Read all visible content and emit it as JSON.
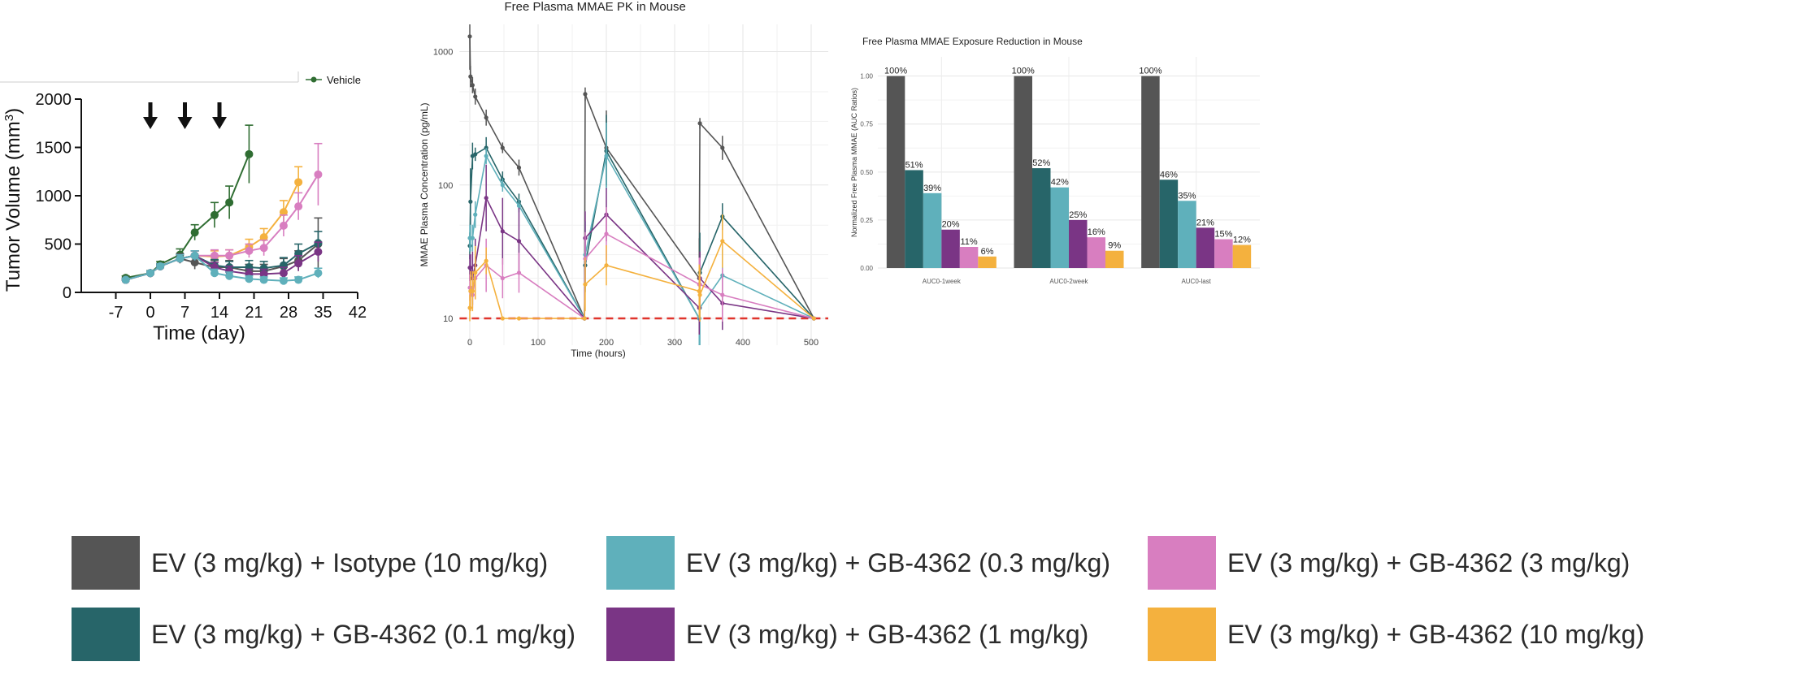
{
  "colors": {
    "isotype": "#555555",
    "gb01": "#276569",
    "gb03": "#5fb0bb",
    "gb1": "#7a3585",
    "gb3": "#d87ec0",
    "gb10": "#f4b13e",
    "vehicle": "#2f6d32",
    "lloq": "#e0342c"
  },
  "legend": {
    "items": [
      {
        "key": "isotype",
        "label": "EV (3 mg/kg) + Isotype (10 mg/kg)"
      },
      {
        "key": "gb03",
        "label": "EV (3 mg/kg) + GB-4362 (0.3 mg/kg)"
      },
      {
        "key": "gb3",
        "label": "EV (3 mg/kg) + GB-4362 (3 mg/kg)"
      },
      {
        "key": "gb01",
        "label": "EV (3 mg/kg) + GB-4362 (0.1 mg/kg)"
      },
      {
        "key": "gb1",
        "label": "EV (3 mg/kg) + GB-4362 (1 mg/kg)"
      },
      {
        "key": "gb10",
        "label": "EV (3 mg/kg) + GB-4362 (10 mg/kg)"
      }
    ]
  },
  "chart_data": [
    {
      "type": "line",
      "title": "",
      "xlabel": "Time (day)",
      "ylabel": "Tumor Volume (mm",
      "ylabel_sup": "3",
      "ylabel_close": ")",
      "xlim": [
        -14,
        42
      ],
      "ylim": [
        0,
        2000
      ],
      "xticks": [
        -7,
        0,
        7,
        14,
        21,
        28,
        35,
        42
      ],
      "xtick_labels": [
        "-7",
        "0",
        "7",
        "14",
        "21",
        "28",
        "35",
        "42"
      ],
      "yticks": [
        0,
        500,
        1000,
        1500,
        2000
      ],
      "ytick_labels": [
        "0",
        "500",
        "1000",
        "1500",
        "2000"
      ],
      "dosing_days": [
        0,
        7,
        14
      ],
      "inset_legend": "Vehicle",
      "series": [
        {
          "name": "Vehicle",
          "key": "vehicle",
          "x": [
            -5,
            0,
            2,
            6,
            9,
            13,
            16,
            20
          ],
          "y": [
            150,
            200,
            290,
            390,
            620,
            800,
            930,
            1430
          ],
          "err": [
            20,
            25,
            30,
            60,
            80,
            130,
            170,
            300
          ]
        },
        {
          "name": "EV (3 mg/kg) + GB-4362 (10 mg/kg)",
          "key": "gb10",
          "x": [
            -5,
            0,
            2,
            6,
            9,
            13,
            16,
            20,
            23,
            27,
            30
          ],
          "y": [
            130,
            200,
            270,
            350,
            380,
            370,
            380,
            470,
            570,
            830,
            1140
          ],
          "err": [
            15,
            20,
            25,
            40,
            50,
            60,
            60,
            80,
            90,
            120,
            160
          ]
        },
        {
          "name": "EV (3 mg/kg) + GB-4362 (3 mg/kg)",
          "key": "gb3",
          "x": [
            -5,
            0,
            2,
            6,
            9,
            13,
            16,
            20,
            23,
            27,
            30,
            34
          ],
          "y": [
            130,
            200,
            270,
            350,
            380,
            380,
            380,
            430,
            460,
            690,
            890,
            1220
          ],
          "err": [
            15,
            20,
            25,
            40,
            50,
            60,
            60,
            70,
            80,
            110,
            140,
            320
          ]
        },
        {
          "name": "EV (3 mg/kg) + Isotype (10 mg/kg)",
          "key": "isotype",
          "x": [
            -5,
            0,
            2,
            6,
            9,
            13,
            16,
            20,
            23,
            27,
            30,
            34
          ],
          "y": [
            130,
            200,
            270,
            350,
            310,
            260,
            260,
            220,
            220,
            270,
            330,
            500
          ],
          "err": [
            15,
            20,
            25,
            50,
            70,
            70,
            70,
            70,
            70,
            80,
            100,
            270
          ]
        },
        {
          "name": "EV (3 mg/kg) + GB-4362 (0.1 mg/kg)",
          "key": "gb01",
          "x": [
            -5,
            0,
            2,
            6,
            9,
            13,
            16,
            20,
            23,
            27,
            30,
            34
          ],
          "y": [
            130,
            200,
            270,
            350,
            380,
            280,
            260,
            260,
            250,
            280,
            400,
            510
          ],
          "err": [
            15,
            20,
            25,
            40,
            50,
            60,
            60,
            70,
            70,
            80,
            100,
            120
          ]
        },
        {
          "name": "EV (3 mg/kg) + GB-4362 (1 mg/kg)",
          "key": "gb1",
          "x": [
            -5,
            0,
            2,
            6,
            9,
            13,
            16,
            20,
            23,
            27,
            30,
            34
          ],
          "y": [
            130,
            200,
            270,
            350,
            380,
            260,
            220,
            190,
            190,
            200,
            300,
            420
          ],
          "err": [
            15,
            20,
            25,
            40,
            50,
            50,
            50,
            50,
            50,
            60,
            80,
            100
          ]
        },
        {
          "name": "EV (3 mg/kg) + GB-4362 (0.3 mg/kg)",
          "key": "gb03",
          "x": [
            -5,
            0,
            2,
            6,
            9,
            13,
            16,
            20,
            23,
            27,
            30,
            34
          ],
          "y": [
            130,
            200,
            270,
            350,
            380,
            200,
            170,
            140,
            130,
            120,
            130,
            200
          ],
          "err": [
            15,
            20,
            25,
            40,
            50,
            40,
            40,
            30,
            30,
            30,
            30,
            50
          ]
        }
      ]
    },
    {
      "type": "line",
      "title": "Free Plasma MMAE PK in Mouse",
      "xlabel": "Time (hours)",
      "ylabel": "MMAE Plasma Concentration (pg/mL)",
      "yscale": "log",
      "xlim": [
        -15,
        525
      ],
      "ylim": [
        6.3,
        1600
      ],
      "xticks": [
        0,
        100,
        200,
        300,
        400,
        500
      ],
      "xtick_labels": [
        "0",
        "100",
        "200",
        "300",
        "400",
        "500"
      ],
      "yticks": [
        10,
        100,
        1000
      ],
      "ytick_labels": [
        "10",
        "100",
        "1000"
      ],
      "lloq": 10,
      "series": [
        {
          "name": "EV (3 mg/kg) + Isotype (10 mg/kg)",
          "key": "isotype",
          "x": [
            0,
            1,
            4,
            8,
            24,
            48,
            72,
            168,
            169,
            200,
            336,
            337,
            370,
            504
          ],
          "y": [
            1300,
            650,
            560,
            460,
            320,
            190,
            135,
            10,
            480,
            190,
            20,
            290,
            190,
            10
          ],
          "err": [
            0.25,
            0.08,
            0.06,
            0.06,
            0.06,
            0.04,
            0.06,
            0,
            0.05,
            0.28,
            0.3,
            0.04,
            0.09,
            0
          ]
        },
        {
          "name": "EV (3 mg/kg) + GB-4362 (0.1 mg/kg)",
          "key": "gb01",
          "x": [
            0,
            1,
            4,
            8,
            24,
            48,
            72,
            168,
            169,
            200,
            336,
            337,
            370,
            504
          ],
          "y": [
            35,
            75,
            165,
            170,
            190,
            110,
            75,
            10,
            25,
            180,
            10,
            22,
            58,
            10
          ],
          "err": [
            0.1,
            0.25,
            0.1,
            0.05,
            0.08,
            0.06,
            0.06,
            0,
            0.2,
            0.27,
            0.3,
            0.3,
            0.1,
            0
          ]
        },
        {
          "name": "EV (3 mg/kg) + GB-4362 (0.3 mg/kg)",
          "key": "gb03",
          "x": [
            0,
            1,
            4,
            8,
            24,
            48,
            72,
            168,
            169,
            200,
            336,
            337,
            370,
            504
          ],
          "y": [
            40,
            40,
            40,
            60,
            165,
            100,
            70,
            10,
            30,
            165,
            10,
            12,
            21,
            10
          ],
          "err": [
            0.1,
            0.1,
            0.1,
            0.1,
            0.06,
            0.05,
            0.05,
            0,
            0.25,
            0.25,
            0.2,
            0.3,
            0.2,
            0
          ]
        },
        {
          "name": "EV (3 mg/kg) + GB-4362 (1 mg/kg)",
          "key": "gb1",
          "x": [
            0,
            1,
            4,
            8,
            24,
            48,
            72,
            168,
            169,
            200,
            336,
            337,
            370,
            504
          ],
          "y": [
            24,
            24,
            20,
            25,
            80,
            45,
            38,
            10,
            40,
            60,
            12,
            20,
            13,
            10
          ],
          "err": [
            0.1,
            0.1,
            0.2,
            0.2,
            0.25,
            0.25,
            0.25,
            0,
            0.2,
            0.2,
            0.2,
            0.2,
            0.2,
            0
          ]
        },
        {
          "name": "EV (3 mg/kg) + GB-4362 (3 mg/kg)",
          "key": "gb3",
          "x": [
            0,
            1,
            4,
            8,
            24,
            48,
            72,
            168,
            169,
            200,
            336,
            337,
            370,
            504
          ],
          "y": [
            17,
            17,
            15,
            20,
            25,
            20,
            22,
            10,
            28,
            43,
            18,
            18,
            15,
            10
          ],
          "err": [
            0.1,
            0.1,
            0.1,
            0.15,
            0.2,
            0.15,
            0.15,
            0,
            0.2,
            0.2,
            0.2,
            0.2,
            0.2,
            0
          ]
        },
        {
          "name": "EV (3 mg/kg) + GB-4362 (10 mg/kg)",
          "key": "gb10",
          "x": [
            0,
            1,
            4,
            8,
            24,
            48,
            72,
            168,
            169,
            200,
            336,
            337,
            370,
            504
          ],
          "y": [
            12,
            16,
            16,
            22,
            27,
            10,
            10,
            10,
            18,
            25,
            16,
            15,
            38,
            10
          ],
          "err": [
            0.1,
            0.15,
            0.15,
            0.2,
            0.1,
            0,
            0,
            0,
            0.2,
            0.15,
            0.2,
            0.2,
            0.2,
            0
          ]
        }
      ]
    },
    {
      "type": "bar",
      "title": "Free Plasma MMAE Exposure Reduction in Mouse",
      "xlabel": "",
      "ylabel": "Normalized Free Plasma MMAE (AUC Ratios)",
      "ylim": [
        0,
        1.1
      ],
      "yticks": [
        0,
        0.25,
        0.5,
        0.75,
        1.0
      ],
      "ytick_labels": [
        "0.00",
        "0.25",
        "0.50",
        "0.75",
        "1.00"
      ],
      "categories": [
        "AUC0-1week",
        "AUC0-2week",
        "AUC0-last"
      ],
      "series": [
        {
          "name": "EV (3 mg/kg) + Isotype (10 mg/kg)",
          "key": "isotype",
          "values": [
            1.0,
            1.0,
            1.0
          ],
          "labels": [
            "100%",
            "100%",
            "100%"
          ]
        },
        {
          "name": "EV (3 mg/kg) + GB-4362 (0.1 mg/kg)",
          "key": "gb01",
          "values": [
            0.51,
            0.52,
            0.46
          ],
          "labels": [
            "51%",
            "52%",
            "46%"
          ]
        },
        {
          "name": "EV (3 mg/kg) + GB-4362 (0.3 mg/kg)",
          "key": "gb03",
          "values": [
            0.39,
            0.42,
            0.35
          ],
          "labels": [
            "39%",
            "42%",
            "35%"
          ]
        },
        {
          "name": "EV (3 mg/kg) + GB-4362 (1 mg/kg)",
          "key": "gb1",
          "values": [
            0.2,
            0.25,
            0.21
          ],
          "labels": [
            "20%",
            "25%",
            "21%"
          ]
        },
        {
          "name": "EV (3 mg/kg) + GB-4362 (3 mg/kg)",
          "key": "gb3",
          "values": [
            0.11,
            0.16,
            0.15
          ],
          "labels": [
            "11%",
            "16%",
            "15%"
          ]
        },
        {
          "name": "EV (3 mg/kg) + GB-4362 (10 mg/kg)",
          "key": "gb10",
          "values": [
            0.06,
            0.09,
            0.12
          ],
          "labels": [
            "6%",
            "9%",
            "12%"
          ]
        }
      ]
    }
  ]
}
